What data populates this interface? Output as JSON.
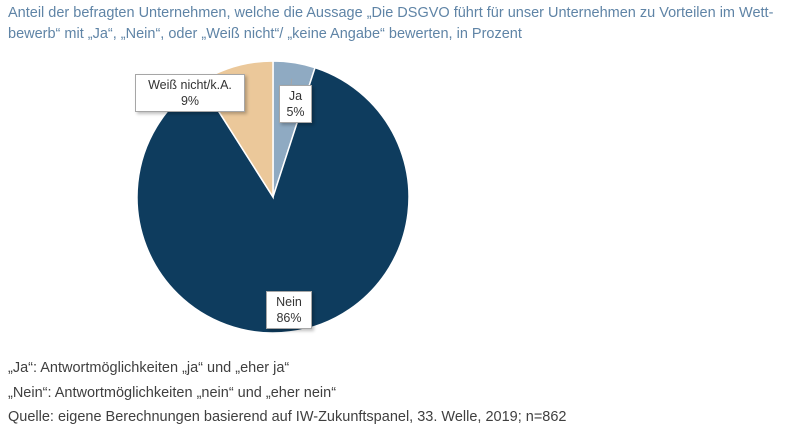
{
  "title": "Anteil der befragten Unternehmen, welche die Aussage „Die DSGVO führt für unser Unternehmen zu Vorteilen im Wett-bewerb“ mit „Ja“, „Nein“, oder „Weiß nicht“/ „keine Angabe“ bewerten, in Prozent",
  "chart_data": {
    "type": "pie",
    "slices": [
      {
        "name": "Ja",
        "label": "5%",
        "value": 5,
        "color": "#8faac2"
      },
      {
        "name": "Nein",
        "label": "86%",
        "value": 86,
        "color": "#0e3c5e"
      },
      {
        "name": "Weiß nicht/k.A.",
        "label": "9%",
        "value": 9,
        "color": "#ebc89a"
      }
    ]
  },
  "footnotes": [
    "„Ja“: Antwortmöglichkeiten „ja“ und „eher ja“",
    "„Nein“: Antwortmöglichkeiten „nein“ und „eher nein“",
    "Quelle: eigene Berechnungen basierend auf IW-Zukunftspanel, 33. Welle, 2019; n=862"
  ]
}
